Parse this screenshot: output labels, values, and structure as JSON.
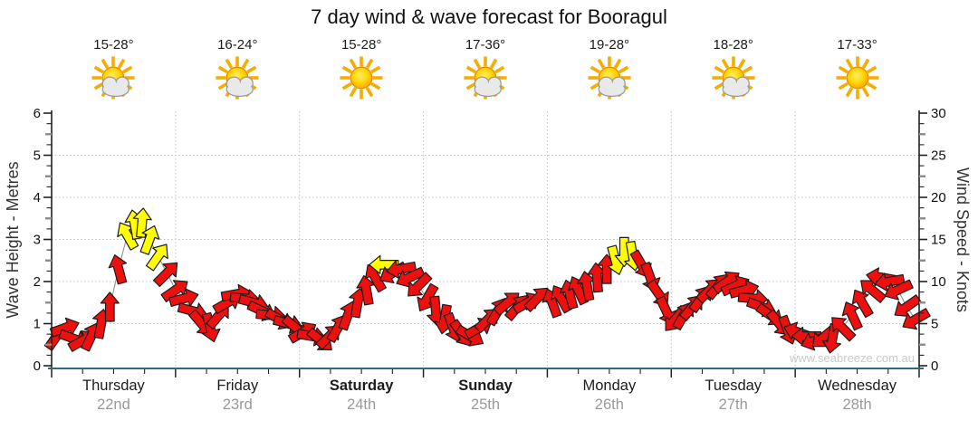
{
  "title": "7 day wind & wave forecast for Booragul",
  "watermark": "www.seabreeze.com.au",
  "colors": {
    "arrow_red": "#ee0f0f",
    "arrow_yellow": "#ffff00",
    "arrow_outline": "#1c1c1c",
    "series_line": "#999999",
    "grid": "#c2c2c2",
    "axis": "#222222",
    "bottom_axis_blue": "#33667f",
    "date_gray": "#999999",
    "watermark_gray": "#c9c9c9"
  },
  "axes": {
    "left": {
      "label": "Wave Height - Metres",
      "ticks": [
        "0",
        "1",
        "2",
        "3",
        "4",
        "5",
        "6"
      ],
      "max": 6
    },
    "right": {
      "label": "Wind Speed - Knots",
      "ticks": [
        "0",
        "5",
        "10",
        "15",
        "20",
        "25",
        "30"
      ],
      "max": 30
    }
  },
  "days": [
    {
      "name": "Thursday",
      "date": "22nd",
      "temp": "15-28°",
      "icon": "sun-cloud",
      "icon_label": "partly-cloudy",
      "weekend": false
    },
    {
      "name": "Friday",
      "date": "23rd",
      "temp": "16-24°",
      "icon": "sun-cloud",
      "icon_label": "partly-cloudy",
      "weekend": false
    },
    {
      "name": "Saturday",
      "date": "24th",
      "temp": "15-28°",
      "icon": "sun",
      "icon_label": "sunny",
      "weekend": true
    },
    {
      "name": "Sunday",
      "date": "25th",
      "temp": "17-36°",
      "icon": "sun-cloud",
      "icon_label": "partly-cloudy",
      "weekend": true
    },
    {
      "name": "Monday",
      "date": "26th",
      "temp": "19-28°",
      "icon": "sun-cloud",
      "icon_label": "partly-cloudy",
      "weekend": false
    },
    {
      "name": "Tuesday",
      "date": "27th",
      "temp": "18-28°",
      "icon": "sun-cloud",
      "icon_label": "partly-cloudy",
      "weekend": false
    },
    {
      "name": "Wednesday",
      "date": "28th",
      "temp": "17-33°",
      "icon": "sun",
      "icon_label": "sunny",
      "weekend": false
    }
  ],
  "chart_data": {
    "type": "line",
    "title": "7 day wind & wave forecast for Booragul",
    "xlabel": "",
    "x_categories": [
      "Thursday 22nd",
      "Friday 23rd",
      "Saturday 24th",
      "Sunday 25th",
      "Monday 26th",
      "Tuesday 27th",
      "Wednesday 28th"
    ],
    "x_range_days": [
      0,
      7
    ],
    "y_left": {
      "label": "Wave Height - Metres",
      "range": [
        0,
        6
      ]
    },
    "y_right": {
      "label": "Wind Speed - Knots",
      "range": [
        0,
        30
      ]
    },
    "grid": "dotted horizontal lines at 1-5 metres, dotted vertical lines at day boundaries",
    "legend": "none",
    "point_format": [
      "time_in_days_from_start",
      "wind_speed_knots",
      "arrow_direction_deg_clockwise_from_up",
      "color: r=red, y=yellow(stronger wind)"
    ],
    "series": [
      {
        "name": "Wind speed (knots) with direction arrows",
        "points": [
          [
            0.04,
            3.5,
            35,
            "r"
          ],
          [
            0.11,
            4.5,
            70,
            "r"
          ],
          [
            0.18,
            3.2,
            110,
            "r"
          ],
          [
            0.25,
            3.0,
            60,
            "r"
          ],
          [
            0.32,
            3.5,
            25,
            "r"
          ],
          [
            0.4,
            5.0,
            10,
            "r"
          ],
          [
            0.47,
            7.0,
            0,
            "r"
          ],
          [
            0.54,
            11.5,
            -15,
            "r"
          ],
          [
            0.61,
            15.5,
            -30,
            "y"
          ],
          [
            0.67,
            16.8,
            -10,
            "y"
          ],
          [
            0.73,
            17.0,
            5,
            "y"
          ],
          [
            0.79,
            15.0,
            20,
            "y"
          ],
          [
            0.86,
            13.0,
            35,
            "y"
          ],
          [
            0.93,
            11.0,
            45,
            "r"
          ],
          [
            1.0,
            9.0,
            55,
            "r"
          ],
          [
            1.07,
            8.0,
            75,
            "r"
          ],
          [
            1.14,
            6.5,
            105,
            "r"
          ],
          [
            1.21,
            5.0,
            140,
            "r"
          ],
          [
            1.28,
            4.5,
            165,
            "r"
          ],
          [
            1.35,
            6.0,
            40,
            "r"
          ],
          [
            1.42,
            7.5,
            60,
            "r"
          ],
          [
            1.49,
            8.5,
            80,
            "r"
          ],
          [
            1.56,
            8.0,
            95,
            "r"
          ],
          [
            1.63,
            7.5,
            105,
            "r"
          ],
          [
            1.7,
            6.5,
            115,
            "r"
          ],
          [
            1.77,
            6.0,
            95,
            "r"
          ],
          [
            1.84,
            5.5,
            120,
            "r"
          ],
          [
            1.91,
            5.0,
            105,
            "r"
          ],
          [
            1.97,
            4.5,
            130,
            "r"
          ],
          [
            2.03,
            4.0,
            60,
            "r"
          ],
          [
            2.1,
            3.5,
            100,
            "r"
          ],
          [
            2.17,
            3.0,
            130,
            "r"
          ],
          [
            2.24,
            3.5,
            45,
            "r"
          ],
          [
            2.31,
            4.5,
            30,
            "r"
          ],
          [
            2.39,
            6.0,
            20,
            "r"
          ],
          [
            2.47,
            7.5,
            10,
            "r"
          ],
          [
            2.54,
            9.0,
            -10,
            "r"
          ],
          [
            2.61,
            10.5,
            -30,
            "r"
          ],
          [
            2.68,
            12.0,
            -90,
            "y"
          ],
          [
            2.75,
            11.0,
            -120,
            "r"
          ],
          [
            2.82,
            11.5,
            -100,
            "r"
          ],
          [
            2.89,
            10.5,
            -115,
            "r"
          ],
          [
            2.96,
            9.5,
            -135,
            "r"
          ],
          [
            3.03,
            8.0,
            -150,
            "r"
          ],
          [
            3.1,
            6.5,
            175,
            "r"
          ],
          [
            3.17,
            5.5,
            190,
            "r"
          ],
          [
            3.24,
            4.5,
            160,
            "r"
          ],
          [
            3.31,
            3.8,
            145,
            "r"
          ],
          [
            3.38,
            3.5,
            120,
            "r"
          ],
          [
            3.45,
            4.5,
            60,
            "r"
          ],
          [
            3.52,
            5.5,
            45,
            "r"
          ],
          [
            3.6,
            6.5,
            30,
            "r"
          ],
          [
            3.68,
            7.5,
            50,
            "r"
          ],
          [
            3.76,
            7.0,
            40,
            "r"
          ],
          [
            3.84,
            7.5,
            60,
            "r"
          ],
          [
            3.92,
            8.0,
            45,
            "r"
          ],
          [
            4.04,
            7.5,
            -20,
            "r"
          ],
          [
            4.11,
            8.0,
            -30,
            "r"
          ],
          [
            4.18,
            8.5,
            -15,
            "r"
          ],
          [
            4.25,
            9.0,
            -25,
            "r"
          ],
          [
            4.32,
            9.5,
            -10,
            "r"
          ],
          [
            4.4,
            10.5,
            -5,
            "r"
          ],
          [
            4.48,
            11.5,
            0,
            "r"
          ],
          [
            4.55,
            12.5,
            165,
            "y"
          ],
          [
            4.62,
            13.5,
            180,
            "y"
          ],
          [
            4.69,
            13.0,
            170,
            "y"
          ],
          [
            4.76,
            12.0,
            150,
            "r"
          ],
          [
            4.83,
            10.5,
            160,
            "r"
          ],
          [
            4.9,
            8.5,
            145,
            "r"
          ],
          [
            4.96,
            6.5,
            155,
            "r"
          ],
          [
            5.03,
            5.5,
            220,
            "r"
          ],
          [
            5.1,
            6.0,
            30,
            "r"
          ],
          [
            5.17,
            7.0,
            40,
            "r"
          ],
          [
            5.24,
            8.0,
            35,
            "r"
          ],
          [
            5.31,
            9.0,
            45,
            "r"
          ],
          [
            5.38,
            9.5,
            40,
            "r"
          ],
          [
            5.45,
            10.0,
            55,
            "r"
          ],
          [
            5.52,
            9.5,
            65,
            "r"
          ],
          [
            5.59,
            9.0,
            75,
            "r"
          ],
          [
            5.66,
            8.0,
            95,
            "r"
          ],
          [
            5.73,
            7.0,
            110,
            "r"
          ],
          [
            5.8,
            6.0,
            125,
            "r"
          ],
          [
            5.87,
            5.0,
            140,
            "r"
          ],
          [
            5.94,
            4.2,
            160,
            "r"
          ],
          [
            6.02,
            4.0,
            -70,
            "r"
          ],
          [
            6.09,
            3.5,
            -90,
            "r"
          ],
          [
            6.16,
            3.0,
            -110,
            "r"
          ],
          [
            6.23,
            3.4,
            -130,
            "r"
          ],
          [
            6.3,
            3.2,
            -170,
            "r"
          ],
          [
            6.38,
            4.5,
            -45,
            "r"
          ],
          [
            6.46,
            6.0,
            -25,
            "r"
          ],
          [
            6.54,
            7.5,
            -30,
            "r"
          ],
          [
            6.62,
            9.0,
            -50,
            "r"
          ],
          [
            6.69,
            10.5,
            -80,
            "r"
          ],
          [
            6.76,
            10.0,
            -100,
            "r"
          ],
          [
            6.83,
            9.0,
            -115,
            "r"
          ],
          [
            6.9,
            7.0,
            -125,
            "r"
          ],
          [
            6.97,
            5.5,
            -120,
            "r"
          ]
        ]
      }
    ]
  }
}
